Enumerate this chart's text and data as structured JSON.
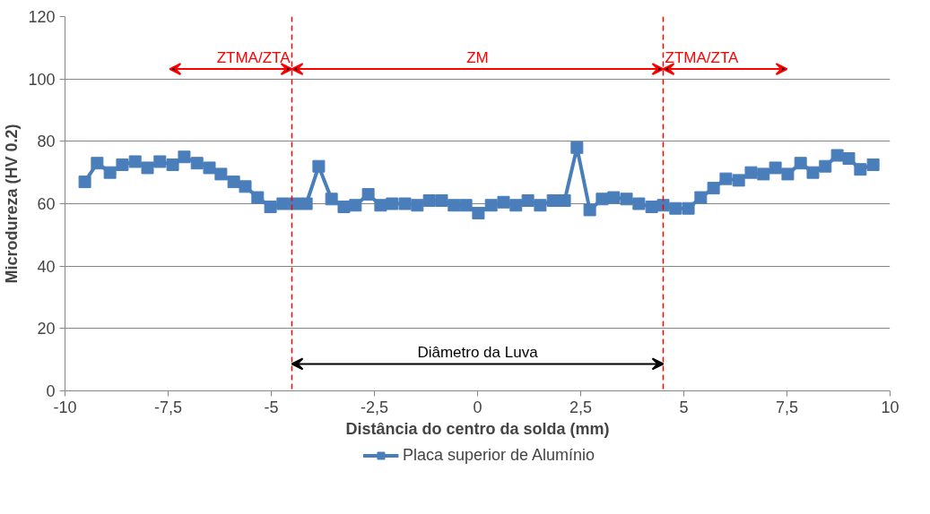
{
  "chart_data": {
    "type": "line",
    "xlabel": "Distância do centro da solda (mm)",
    "ylabel": "Microdureza (HV 0.2)",
    "xlim": [
      -10,
      10
    ],
    "ylim": [
      0,
      120
    ],
    "xticks": [
      -10,
      {
        "value": -7.5,
        "label": "-7,5"
      },
      -5,
      {
        "value": -2.5,
        "label": "-2,5"
      },
      0,
      {
        "value": 2.5,
        "label": "2,5"
      },
      5,
      {
        "value": 7.5,
        "label": "7,5"
      },
      10
    ],
    "yticks": [
      0,
      20,
      40,
      60,
      80,
      100,
      120
    ],
    "grid": "y",
    "legend": "bottom",
    "marker": "square",
    "line_style": "solid",
    "series": [
      {
        "name": "Placa superior de Alumínio",
        "color": "#4a7ebb",
        "x": [
          -9.52,
          -9.22,
          -8.91,
          -8.61,
          -8.3,
          -8.0,
          -7.7,
          -7.39,
          -7.11,
          -6.8,
          -6.5,
          -6.22,
          -5.91,
          -5.63,
          -5.33,
          -5.02,
          -4.72,
          -4.43,
          -4.15,
          -3.85,
          -3.54,
          -3.24,
          -2.96,
          -2.65,
          -2.35,
          -2.07,
          -1.76,
          -1.46,
          -1.17,
          -0.87,
          -0.57,
          -0.28,
          0.02,
          0.33,
          0.63,
          0.93,
          1.22,
          1.52,
          1.83,
          2.11,
          2.41,
          2.72,
          3.02,
          3.3,
          3.61,
          3.91,
          4.22,
          4.5,
          4.8,
          5.11,
          5.41,
          5.72,
          6.02,
          6.33,
          6.63,
          6.93,
          7.22,
          7.52,
          7.83,
          8.13,
          8.43,
          8.72,
          9.0,
          9.28,
          9.59
        ],
        "values": [
          67,
          73,
          70,
          72.5,
          73.5,
          71.5,
          73.5,
          72.5,
          75,
          73,
          71.5,
          69.5,
          67,
          65.5,
          62,
          59,
          60,
          60,
          60,
          72,
          61.5,
          59,
          59.5,
          63,
          59.5,
          60,
          60,
          59.5,
          61,
          61,
          59.5,
          59.5,
          57,
          59.5,
          60.5,
          59.5,
          61,
          59.5,
          61,
          61,
          78,
          58,
          61.5,
          62,
          61.5,
          60,
          59,
          59.5,
          58.5,
          58.5,
          62,
          65,
          68,
          67.5,
          70,
          69.5,
          71.5,
          69.5,
          73,
          70,
          72,
          75.5,
          74.5,
          71,
          72.5
        ]
      }
    ],
    "ref_lines": [
      {
        "axis": "x",
        "value": -4.5,
        "color": "#ff0000",
        "line_style": "dashed"
      },
      {
        "axis": "x",
        "value": 4.5,
        "color": "#ff0000",
        "line_style": "dashed"
      }
    ],
    "annotations": [
      "ZTMA/ZTA",
      "ZM",
      "ZTMA/ZTA",
      "Diâmetro da Luva"
    ]
  }
}
